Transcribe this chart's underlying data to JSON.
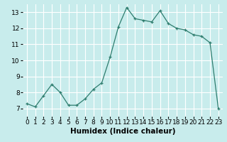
{
  "x": [
    0,
    1,
    2,
    3,
    4,
    5,
    6,
    7,
    8,
    9,
    10,
    11,
    12,
    13,
    14,
    15,
    16,
    17,
    18,
    19,
    20,
    21,
    22,
    23
  ],
  "y": [
    7.3,
    7.1,
    7.8,
    8.5,
    8.0,
    7.2,
    7.2,
    7.6,
    8.2,
    8.6,
    10.2,
    12.1,
    13.3,
    12.6,
    12.5,
    12.4,
    13.1,
    12.3,
    12.0,
    11.9,
    11.6,
    11.5,
    11.1,
    7.0
  ],
  "line_color": "#2e7d6e",
  "marker": "+",
  "bg_color": "#c8ecec",
  "grid_color": "#ffffff",
  "xlabel": "Humidex (Indice chaleur)",
  "xlim": [
    -0.5,
    23.5
  ],
  "ylim": [
    6.5,
    13.5
  ],
  "yticks": [
    7,
    8,
    9,
    10,
    11,
    12,
    13
  ],
  "xticks": [
    0,
    1,
    2,
    3,
    4,
    5,
    6,
    7,
    8,
    9,
    10,
    11,
    12,
    13,
    14,
    15,
    16,
    17,
    18,
    19,
    20,
    21,
    22,
    23
  ],
  "tick_fontsize": 6.5,
  "xlabel_fontsize": 7.5
}
